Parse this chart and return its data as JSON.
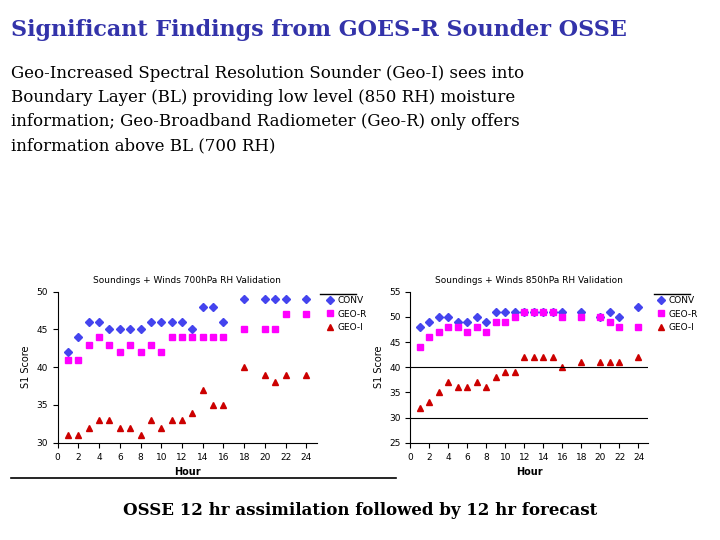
{
  "title": "Significant Findings from GOES-R Sounder OSSE",
  "title_color": "#3333AA",
  "body_text": "Geo-Increased Spectral Resolution Sounder (Geo-I) sees into\nBoundary Layer (BL) providing low level (850 RH) moisture\ninformation; Geo-Broadband Radiometer (Geo-R) only offers\ninformation above BL (700 RH)",
  "footer_text": "OSSE 12 hr assimilation followed by 12 hr forecast",
  "bg_color": "#FFFFFF",
  "chart1_title": "Soundings + Winds 700hPa RH Validation",
  "chart1_ylabel": "S1 Score",
  "chart1_xlabel": "Hour",
  "chart1_ylim": [
    30,
    50
  ],
  "chart1_yticks": [
    30,
    35,
    40,
    45,
    50
  ],
  "chart1_CONV_x": [
    1,
    2,
    3,
    4,
    5,
    6,
    7,
    8,
    9,
    10,
    11,
    12,
    13,
    14,
    15,
    16,
    18,
    20,
    21,
    22,
    24
  ],
  "chart1_CONV_y": [
    42,
    44,
    46,
    46,
    45,
    45,
    45,
    45,
    46,
    46,
    46,
    46,
    45,
    48,
    48,
    46,
    49,
    49,
    49,
    49,
    49
  ],
  "chart1_GEOR_x": [
    1,
    2,
    3,
    4,
    5,
    6,
    7,
    8,
    9,
    10,
    11,
    12,
    13,
    14,
    15,
    16,
    18,
    20,
    21,
    22,
    24
  ],
  "chart1_GEOR_y": [
    41,
    41,
    43,
    44,
    43,
    42,
    43,
    42,
    43,
    42,
    44,
    44,
    44,
    44,
    44,
    44,
    45,
    45,
    45,
    47,
    47
  ],
  "chart1_GEOI_x": [
    1,
    2,
    3,
    4,
    5,
    6,
    7,
    8,
    9,
    10,
    11,
    12,
    13,
    14,
    15,
    16,
    18,
    20,
    21,
    22,
    24
  ],
  "chart1_GEOI_y": [
    31,
    31,
    32,
    33,
    33,
    32,
    32,
    31,
    33,
    32,
    33,
    33,
    34,
    37,
    35,
    35,
    40,
    39,
    38,
    39,
    39
  ],
  "chart2_title": "Soundings + Winds 850hPa RH Validation",
  "chart2_ylabel": "S1 Score",
  "chart2_xlabel": "Hour",
  "chart2_ylim": [
    25,
    55
  ],
  "chart2_yticks": [
    25,
    30,
    35,
    40,
    45,
    50,
    55
  ],
  "chart2_hlines": [
    30,
    40
  ],
  "chart2_CONV_x": [
    1,
    2,
    3,
    4,
    5,
    6,
    7,
    8,
    9,
    10,
    11,
    12,
    13,
    14,
    15,
    16,
    18,
    20,
    21,
    22,
    24
  ],
  "chart2_CONV_y": [
    48,
    49,
    50,
    50,
    49,
    49,
    50,
    49,
    51,
    51,
    51,
    51,
    51,
    51,
    51,
    51,
    51,
    50,
    51,
    50,
    52
  ],
  "chart2_GEOR_x": [
    1,
    2,
    3,
    4,
    5,
    6,
    7,
    8,
    9,
    10,
    11,
    12,
    13,
    14,
    15,
    16,
    18,
    20,
    21,
    22,
    24
  ],
  "chart2_GEOR_y": [
    44,
    46,
    47,
    48,
    48,
    47,
    48,
    47,
    49,
    49,
    50,
    51,
    51,
    51,
    51,
    50,
    50,
    50,
    49,
    48,
    48
  ],
  "chart2_GEOI_x": [
    1,
    2,
    3,
    4,
    5,
    6,
    7,
    8,
    9,
    10,
    11,
    12,
    13,
    14,
    15,
    16,
    18,
    20,
    21,
    22,
    24
  ],
  "chart2_GEOI_y": [
    32,
    33,
    35,
    37,
    36,
    36,
    37,
    36,
    38,
    39,
    39,
    42,
    42,
    42,
    42,
    40,
    41,
    41,
    41,
    41,
    42
  ],
  "color_CONV": "#4444EE",
  "color_GEOR": "#FF00FF",
  "color_GEOI": "#CC0000",
  "marker_CONV": "D",
  "marker_GEOR": "s",
  "marker_GEOI": "^",
  "markersize": 4,
  "xticks": [
    0,
    2,
    4,
    6,
    8,
    10,
    12,
    14,
    16,
    18,
    20,
    22,
    24
  ]
}
